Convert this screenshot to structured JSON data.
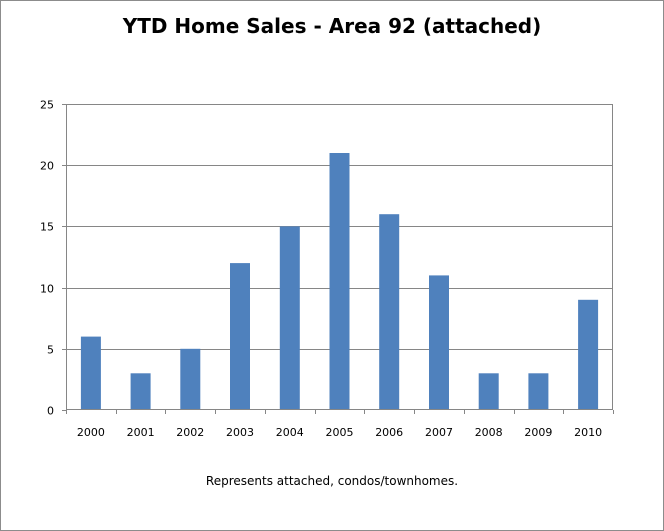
{
  "chart_data": {
    "type": "bar",
    "title": "YTD Home Sales - Area 92 (attached)",
    "note": "Represents attached, condos/townhomes.",
    "xlabel": "",
    "ylabel": "",
    "categories": [
      "2000",
      "2001",
      "2002",
      "2003",
      "2004",
      "2005",
      "2006",
      "2007",
      "2008",
      "2009",
      "2010"
    ],
    "values": [
      6,
      3,
      5,
      12,
      15,
      21,
      16,
      11,
      3,
      3,
      9
    ],
    "ylim": [
      0,
      25
    ],
    "yticks": [
      "0",
      "5",
      "10",
      "15",
      "20",
      "25"
    ],
    "grid": true,
    "legend": "none",
    "colors": {
      "bar": "#4f81bd",
      "grid": "#868686",
      "axis": "#868686"
    }
  }
}
